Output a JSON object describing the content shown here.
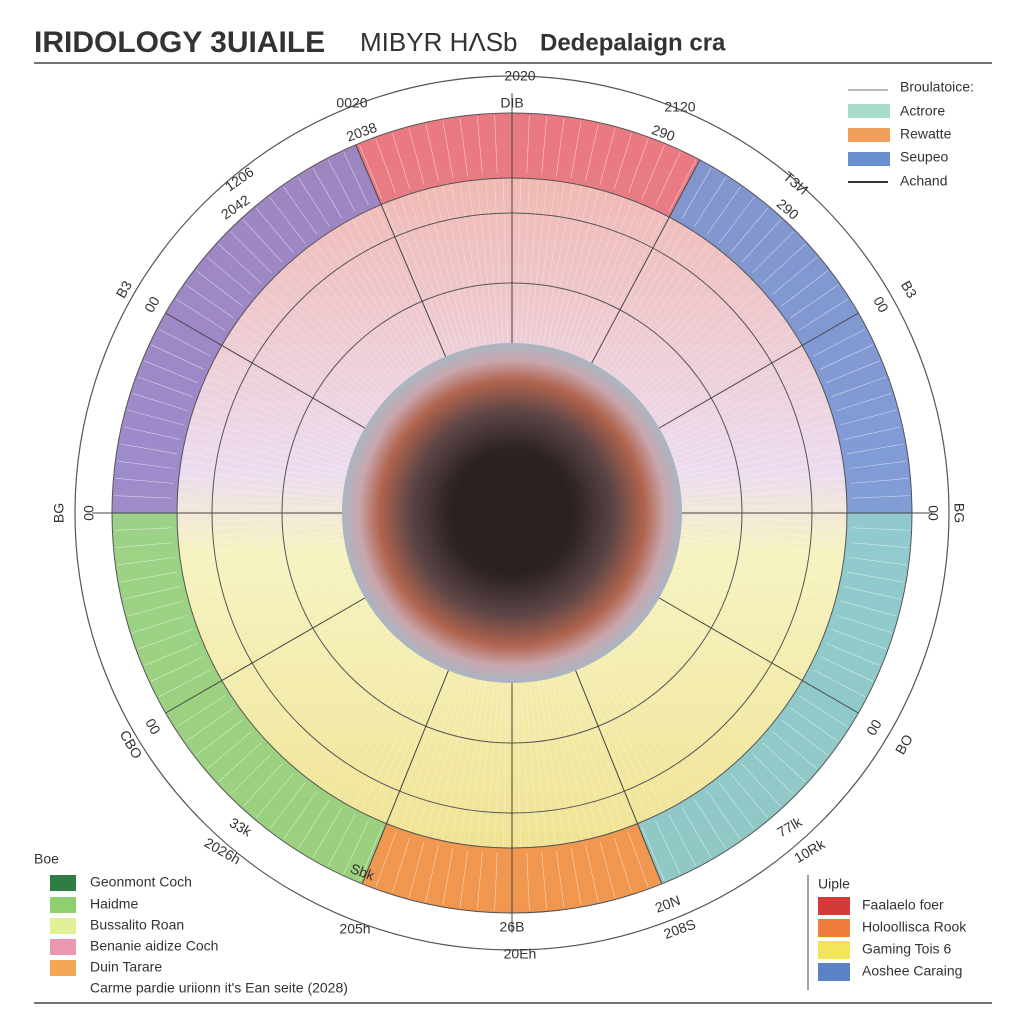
{
  "header": {
    "title": [
      "IRIDOLOGY 3UIAILE",
      "MIBYR HΛSb",
      "Dedepalaign cra"
    ]
  },
  "ring_labels": [
    "2020",
    "DIB",
    "0020",
    "2038",
    "2120",
    "290",
    "1206",
    "2042",
    "TЗИ",
    "290",
    "B3",
    "00",
    "00",
    "B3",
    "BG",
    "00",
    "00",
    "BG",
    "CBO",
    "00",
    "00",
    "BO",
    "33k",
    "2026h",
    "77lk",
    "10Rk",
    "Sbk",
    "205h",
    "26B",
    "20Eh",
    "20N",
    "208S"
  ],
  "legend_top": {
    "title": "Broulatoice:",
    "items": [
      "Actrore",
      "Rewatte",
      "Seupeo",
      "Achand"
    ]
  },
  "legend_left": {
    "title": "Boe",
    "items": [
      "Geonmont Coch",
      "Haidme",
      "Bussalito Roan",
      "Benanie aidize Coch",
      "Duin Tarare"
    ],
    "note": "Carme pardie uriionn it's Ean seite (2028)"
  },
  "legend_right": {
    "title": "Uiple",
    "items": [
      "Faalaelo foer",
      "Holoollisca Rook",
      "Gaming Tois 6",
      "Aoshee Caraing"
    ]
  }
}
